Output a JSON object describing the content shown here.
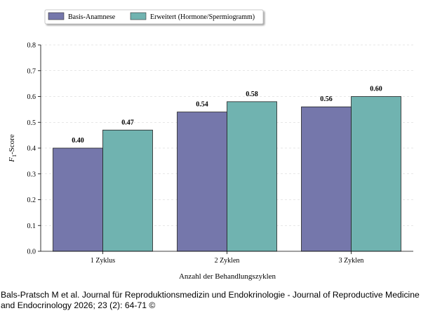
{
  "chart_data": {
    "type": "bar",
    "title": "",
    "xlabel": "Anzahl der Behandlungszyklen",
    "ylabel": "F1-Score",
    "ylabel_main": "F",
    "ylabel_sub": "1",
    "ylabel_rest": "-Score",
    "categories": [
      "1 Zyklus",
      "2 Zyklen",
      "3 Zyklen"
    ],
    "series": [
      {
        "name": "Basis-Anamnese",
        "values": [
          0.4,
          0.54,
          0.56
        ],
        "labels": [
          "0.40",
          "0.54",
          "0.56"
        ],
        "color": "#7577ab"
      },
      {
        "name": "Erweitert (Hormone/Spermiogramm)",
        "values": [
          0.47,
          0.58,
          0.6
        ],
        "labels": [
          "0.47",
          "0.58",
          "0.60"
        ],
        "color": "#70b3b0"
      }
    ],
    "ylim": [
      0,
      0.8
    ],
    "yticks": [
      "0.0",
      "0.1",
      "0.2",
      "0.3",
      "0.4",
      "0.5",
      "0.6",
      "0.7",
      "0.8"
    ],
    "grid": "horizontal dashed",
    "legend_position": "top-left"
  },
  "caption": "Bals-Pratsch M et al. Journal für Reproduktionsmedizin und Endokrinologie - Journal of Reproductive Medicine and Endocrinology 2026; 23 (2): 64-71 ©"
}
